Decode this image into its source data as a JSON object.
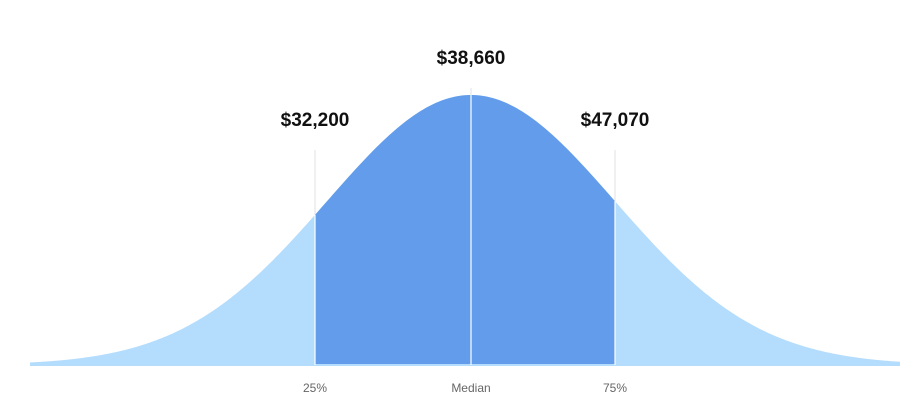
{
  "percentiles": [
    {
      "label": "25%",
      "amount": "$32,200"
    },
    {
      "label": "Median",
      "amount": "$38,660"
    },
    {
      "label": "75%",
      "amount": "$47,070"
    }
  ]
}
